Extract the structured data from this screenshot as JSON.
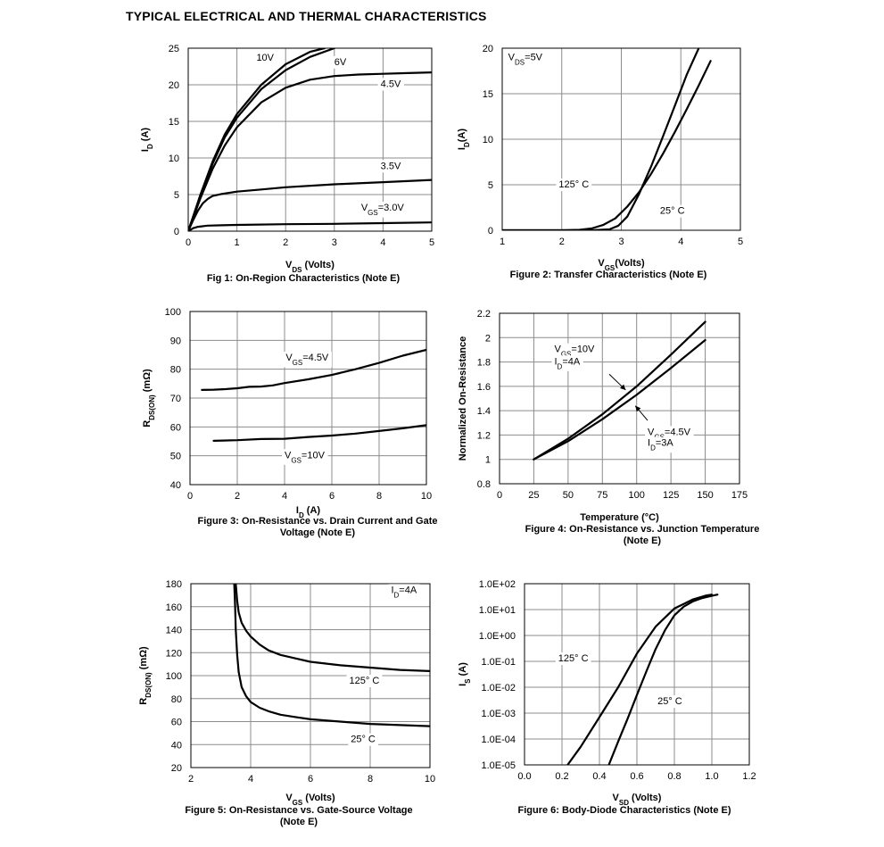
{
  "page_title": "TYPICAL ELECTRICAL AND THERMAL CHARACTERISTICS",
  "chart_data": [
    {
      "id": "fig1",
      "type": "line",
      "caption": "Fig 1: On-Region Characteristics (Note E)",
      "xlabel": {
        "main": "V",
        "sub": "DS",
        "rest": " (Volts)"
      },
      "ylabel": {
        "main": "I",
        "sub": "D",
        "rest": " (A)"
      },
      "xlim": [
        0,
        5
      ],
      "ylim": [
        0,
        25
      ],
      "xticks": [
        0,
        1,
        2,
        3,
        4,
        5
      ],
      "yticks": [
        0,
        5,
        10,
        15,
        20,
        25
      ],
      "xtick_labels": [
        "0",
        "1",
        "2",
        "3",
        "4",
        "5"
      ],
      "ytick_labels": [
        "0",
        "5",
        "10",
        "15",
        "20",
        "25"
      ],
      "grid": true,
      "series": [
        {
          "name": "10V",
          "x": [
            0,
            0.25,
            0.5,
            0.75,
            1,
            1.5,
            2,
            2.5,
            2.8
          ],
          "y": [
            0,
            5,
            9.5,
            13.2,
            16,
            20,
            22.8,
            24.5,
            25
          ]
        },
        {
          "name": "6V",
          "x": [
            0,
            0.25,
            0.5,
            0.75,
            1,
            1.5,
            2,
            2.5,
            3
          ],
          "y": [
            0,
            4.8,
            9.2,
            12.8,
            15.5,
            19.4,
            22,
            23.8,
            25
          ]
        },
        {
          "name": "4.5V",
          "x": [
            0,
            0.25,
            0.5,
            0.75,
            1,
            1.5,
            2,
            2.5,
            3,
            3.5,
            4,
            4.5,
            5
          ],
          "y": [
            0,
            4.5,
            8.5,
            11.7,
            14.2,
            17.6,
            19.6,
            20.7,
            21.2,
            21.4,
            21.5,
            21.6,
            21.7
          ]
        },
        {
          "name": "3.5V",
          "x": [
            0,
            0.1,
            0.2,
            0.3,
            0.4,
            0.5,
            0.7,
            1,
            1.5,
            2,
            3,
            4,
            5
          ],
          "y": [
            0,
            1.5,
            2.8,
            3.8,
            4.4,
            4.8,
            5.1,
            5.4,
            5.7,
            6,
            6.4,
            6.7,
            7.0
          ]
        },
        {
          "name": "3.0V",
          "x": [
            0,
            0.1,
            0.2,
            0.4,
            0.7,
            1,
            2,
            3,
            4,
            5
          ],
          "y": [
            0,
            0.4,
            0.6,
            0.75,
            0.8,
            0.85,
            0.95,
            1.0,
            1.1,
            1.2
          ]
        }
      ],
      "labels": [
        {
          "text": "10V",
          "x": 1.4,
          "y": 23.3
        },
        {
          "text": "6V",
          "x": 3.0,
          "y": 22.7
        },
        {
          "text": "4.5V",
          "x": 3.95,
          "y": 19.7
        },
        {
          "text": "3.5V",
          "x": 3.95,
          "y": 8.5
        },
        {
          "text": "V",
          "sub": "GS",
          "rest": "=3.0V",
          "x": 3.55,
          "y": 2.8
        }
      ]
    },
    {
      "id": "fig2",
      "type": "line",
      "caption": "Figure 2: Transfer Characteristics (Note E)",
      "xlabel": {
        "main": "V",
        "sub": "GS",
        "rest": "(Volts)"
      },
      "ylabel": {
        "main": "I",
        "sub": "D",
        "rest": "(A)"
      },
      "xlim": [
        1,
        5
      ],
      "ylim": [
        0,
        20
      ],
      "xticks": [
        1,
        2,
        3,
        4,
        5
      ],
      "yticks": [
        0,
        5,
        10,
        15,
        20
      ],
      "xtick_labels": [
        "1",
        "2",
        "3",
        "4",
        "5"
      ],
      "ytick_labels": [
        "0",
        "5",
        "10",
        "15",
        "20"
      ],
      "grid": true,
      "series": [
        {
          "name": "125° C",
          "x": [
            1,
            2,
            2.3,
            2.5,
            2.7,
            2.9,
            3.1,
            3.3,
            3.5,
            3.7,
            3.9,
            4.1,
            4.3,
            4.5
          ],
          "y": [
            0,
            0,
            0.05,
            0.2,
            0.6,
            1.3,
            2.6,
            4.2,
            6.2,
            8.4,
            10.8,
            13.3,
            15.9,
            18.6
          ]
        },
        {
          "name": "25° C",
          "x": [
            1,
            2.5,
            2.8,
            2.95,
            3.1,
            3.3,
            3.5,
            3.7,
            3.9,
            4.1,
            4.3
          ],
          "y": [
            0,
            0,
            0.1,
            0.5,
            1.5,
            4.0,
            7.0,
            10.3,
            13.7,
            17.1,
            20
          ]
        }
      ],
      "labels": [
        {
          "text": "V",
          "sub": "DS",
          "rest": "=5V",
          "x": 1.1,
          "y": 18.7
        },
        {
          "text": "125° C",
          "x": 1.95,
          "y": 4.7
        },
        {
          "text": "25° C",
          "x": 3.65,
          "y": 1.8
        }
      ]
    },
    {
      "id": "fig3",
      "type": "line",
      "caption": [
        "Figure 3: On-Resistance vs. Drain Current and Gate",
        "Voltage (Note E)"
      ],
      "xlabel": {
        "main": "I",
        "sub": "D",
        "rest": " (A)"
      },
      "ylabel": {
        "main": "R",
        "sub": "DS(ON)",
        "rest": " (mΩ)"
      },
      "xlim": [
        0,
        10
      ],
      "ylim": [
        40,
        100
      ],
      "xticks": [
        0,
        2,
        4,
        6,
        8,
        10
      ],
      "yticks": [
        40,
        50,
        60,
        70,
        80,
        90,
        100
      ],
      "xtick_labels": [
        "0",
        "2",
        "4",
        "6",
        "8",
        "10"
      ],
      "ytick_labels": [
        "40",
        "50",
        "60",
        "70",
        "80",
        "90",
        "100"
      ],
      "grid": true,
      "series": [
        {
          "name": "V_GS=4.5V",
          "x": [
            0.5,
            1,
            1.5,
            2,
            2.5,
            3,
            3.5,
            4,
            5,
            6,
            7,
            8,
            9,
            10
          ],
          "y": [
            72.8,
            72.9,
            73.1,
            73.4,
            73.9,
            74.0,
            74.4,
            75.2,
            76.5,
            78.0,
            80.0,
            82.2,
            84.7,
            86.7
          ]
        },
        {
          "name": "V_GS=10V",
          "x": [
            1,
            2,
            3,
            4,
            5,
            6,
            7,
            8,
            9,
            10
          ],
          "y": [
            55.2,
            55.4,
            55.8,
            55.9,
            56.5,
            57.0,
            57.7,
            58.6,
            59.5,
            60.6
          ]
        }
      ],
      "labels": [
        {
          "text": "V",
          "sub": "GS",
          "rest": "=4.5V",
          "x": 4.05,
          "y": 83.0
        },
        {
          "text": "V",
          "sub": "GS",
          "rest": "=10V",
          "x": 4.0,
          "y": 49.2
        }
      ]
    },
    {
      "id": "fig4",
      "type": "line",
      "caption": [
        "Figure 4: On-Resistance vs. Junction Temperature",
        "(Note E)"
      ],
      "xlabel": {
        "main": "Temperature (°C)",
        "sub": "",
        "rest": ""
      },
      "ylabel": {
        "main": "Normalized On-Resistance",
        "sub": "",
        "rest": ""
      },
      "xlim": [
        0,
        175
      ],
      "ylim": [
        0.8,
        2.2
      ],
      "xticks": [
        0,
        25,
        50,
        75,
        100,
        125,
        150,
        175
      ],
      "yticks": [
        0.8,
        1,
        1.2,
        1.4,
        1.6,
        1.8,
        2,
        2.2
      ],
      "xtick_labels": [
        "0",
        "25",
        "50",
        "75",
        "100",
        "125",
        "150",
        "175"
      ],
      "ytick_labels": [
        "0.8",
        "1",
        "1.2",
        "1.4",
        "1.6",
        "1.8",
        "2",
        "2.2"
      ],
      "grid": true,
      "series": [
        {
          "name": "V_GS=10V, I_D=4A",
          "x": [
            25,
            50,
            75,
            100,
            125,
            150
          ],
          "y": [
            1.0,
            1.17,
            1.37,
            1.6,
            1.86,
            2.13
          ]
        },
        {
          "name": "V_GS=4.5V, I_D=3A",
          "x": [
            25,
            50,
            75,
            100,
            125,
            150
          ],
          "y": [
            1.0,
            1.15,
            1.33,
            1.53,
            1.75,
            1.98
          ]
        }
      ],
      "labels": [
        {
          "text": "V",
          "sub": "GS",
          "rest": "=10V",
          "x": 40,
          "y": 1.88
        },
        {
          "text": "I",
          "sub": "D",
          "rest": "=4A",
          "x": 40,
          "y": 1.78
        },
        {
          "text": "V",
          "sub": "GS",
          "rest": "=4.5V",
          "x": 108,
          "y": 1.2
        },
        {
          "text": "I",
          "sub": "D",
          "rest": "=3A",
          "x": 108,
          "y": 1.11
        }
      ],
      "arrows": [
        {
          "from": [
            80,
            1.7
          ],
          "to": [
            92,
            1.57
          ]
        },
        {
          "from": [
            108,
            1.32
          ],
          "to": [
            99,
            1.44
          ]
        }
      ]
    },
    {
      "id": "fig5",
      "type": "line",
      "caption": [
        "Figure 5: On-Resistance vs. Gate-Source Voltage",
        "(Note E)"
      ],
      "xlabel": {
        "main": "V",
        "sub": "GS",
        "rest": " (Volts)"
      },
      "ylabel": {
        "main": "R",
        "sub": "DS(ON)",
        "rest": " (mΩ)"
      },
      "xlim": [
        2,
        10
      ],
      "ylim": [
        20,
        180
      ],
      "xticks": [
        2,
        4,
        6,
        8,
        10
      ],
      "yticks": [
        20,
        40,
        60,
        80,
        100,
        120,
        140,
        160,
        180
      ],
      "xtick_labels": [
        "2",
        "4",
        "6",
        "8",
        "10"
      ],
      "ytick_labels": [
        "20",
        "40",
        "60",
        "80",
        "100",
        "120",
        "140",
        "160",
        "180"
      ],
      "grid": true,
      "series": [
        {
          "name": "125° C",
          "x": [
            3.5,
            3.55,
            3.6,
            3.7,
            3.85,
            4,
            4.3,
            4.6,
            5,
            5.5,
            6,
            7,
            8,
            9,
            10
          ],
          "y": [
            180,
            165,
            155,
            146,
            139,
            134,
            127,
            122,
            118,
            115,
            112,
            109,
            107,
            105,
            104
          ]
        },
        {
          "name": "25° C",
          "x": [
            3.45,
            3.48,
            3.5,
            3.55,
            3.6,
            3.7,
            3.85,
            4,
            4.3,
            4.6,
            5,
            5.5,
            6,
            7,
            8,
            9,
            10
          ],
          "y": [
            180,
            160,
            140,
            118,
            103,
            90,
            82,
            77,
            72,
            69,
            66,
            64,
            62,
            60,
            58,
            57,
            56
          ]
        }
      ],
      "labels": [
        {
          "text": "I",
          "sub": "D",
          "rest": "=4A",
          "x": 8.7,
          "y": 172
        },
        {
          "text": "125° C",
          "x": 7.3,
          "y": 93
        },
        {
          "text": "25° C",
          "x": 7.35,
          "y": 42
        }
      ]
    },
    {
      "id": "fig6",
      "type": "line",
      "log_y": true,
      "caption": "Figure 6: Body-Diode Characteristics (Note E)",
      "xlabel": {
        "main": "V",
        "sub": "SD",
        "rest": " (Volts)"
      },
      "ylabel": {
        "main": "I",
        "sub": "S",
        "rest": " (A)"
      },
      "xlim": [
        0.0,
        1.2
      ],
      "ylim": [
        1e-05,
        100
      ],
      "xticks": [
        0.0,
        0.2,
        0.4,
        0.6,
        0.8,
        1.0,
        1.2
      ],
      "yticks": [
        1e-05,
        0.0001,
        0.001,
        0.01,
        0.1,
        1,
        10,
        100
      ],
      "xtick_labels": [
        "0.0",
        "0.2",
        "0.4",
        "0.6",
        "0.8",
        "1.0",
        "1.2"
      ],
      "ytick_labels": [
        "1.0E-05",
        "1.0E-04",
        "1.0E-03",
        "1.0E-02",
        "1.0E-01",
        "1.0E+00",
        "1.0E+01",
        "1.0E+02"
      ],
      "grid": true,
      "series": [
        {
          "name": "125° C",
          "x": [
            0.23,
            0.3,
            0.4,
            0.5,
            0.6,
            0.7,
            0.8,
            0.9,
            0.97,
            1.0
          ],
          "y": [
            1e-05,
            5e-05,
            0.0007,
            0.01,
            0.2,
            2.2,
            11,
            25,
            35,
            38
          ]
        },
        {
          "name": "25° C",
          "x": [
            0.45,
            0.5,
            0.55,
            0.6,
            0.65,
            0.7,
            0.75,
            0.8,
            0.85,
            0.9,
            0.95,
            1.0,
            1.03
          ],
          "y": [
            1e-05,
            8e-05,
            0.0006,
            0.005,
            0.04,
            0.3,
            1.6,
            6,
            13,
            21,
            28,
            34,
            38
          ]
        }
      ],
      "labels": [
        {
          "text": "125° C",
          "x": 0.18,
          "y": 0.1
        },
        {
          "text": "25° C",
          "x": 0.71,
          "y": 0.0022
        }
      ]
    }
  ]
}
